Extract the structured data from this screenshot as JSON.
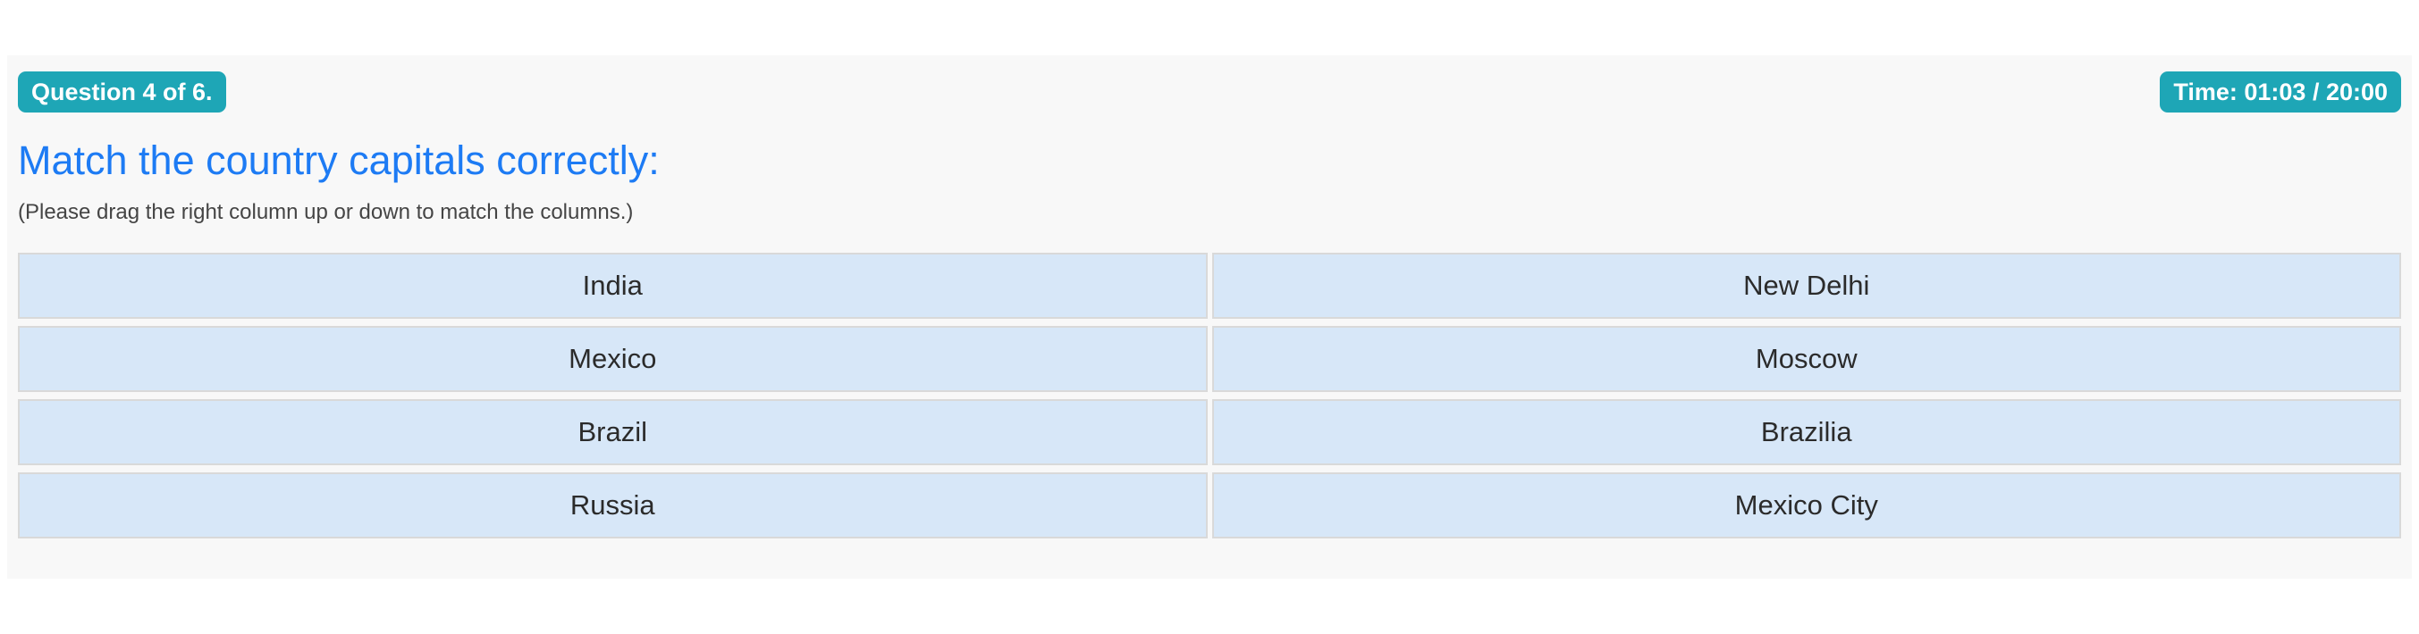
{
  "quiz": {
    "question_badge": "Question 4 of 6.",
    "timer_badge": "Time: 01:03 / 20:00",
    "title": "Match the country capitals correctly:",
    "instruction": "(Please drag the right column up or down to match the columns.)",
    "match_table": {
      "left_column": [
        "India",
        "Mexico",
        "Brazil",
        "Russia"
      ],
      "right_column": [
        "New Delhi",
        "Moscow",
        "Brazilia",
        "Mexico City"
      ]
    },
    "colors": {
      "badge_bg": "#1ea6b6",
      "badge_text": "#ffffff",
      "title_blue": "#1d7bf4",
      "panel_bg": "#f8f8f8",
      "cell_bg": "#d7e7f8",
      "cell_border": "#d9d9d9",
      "cell_text": "#2b2b2b"
    }
  }
}
